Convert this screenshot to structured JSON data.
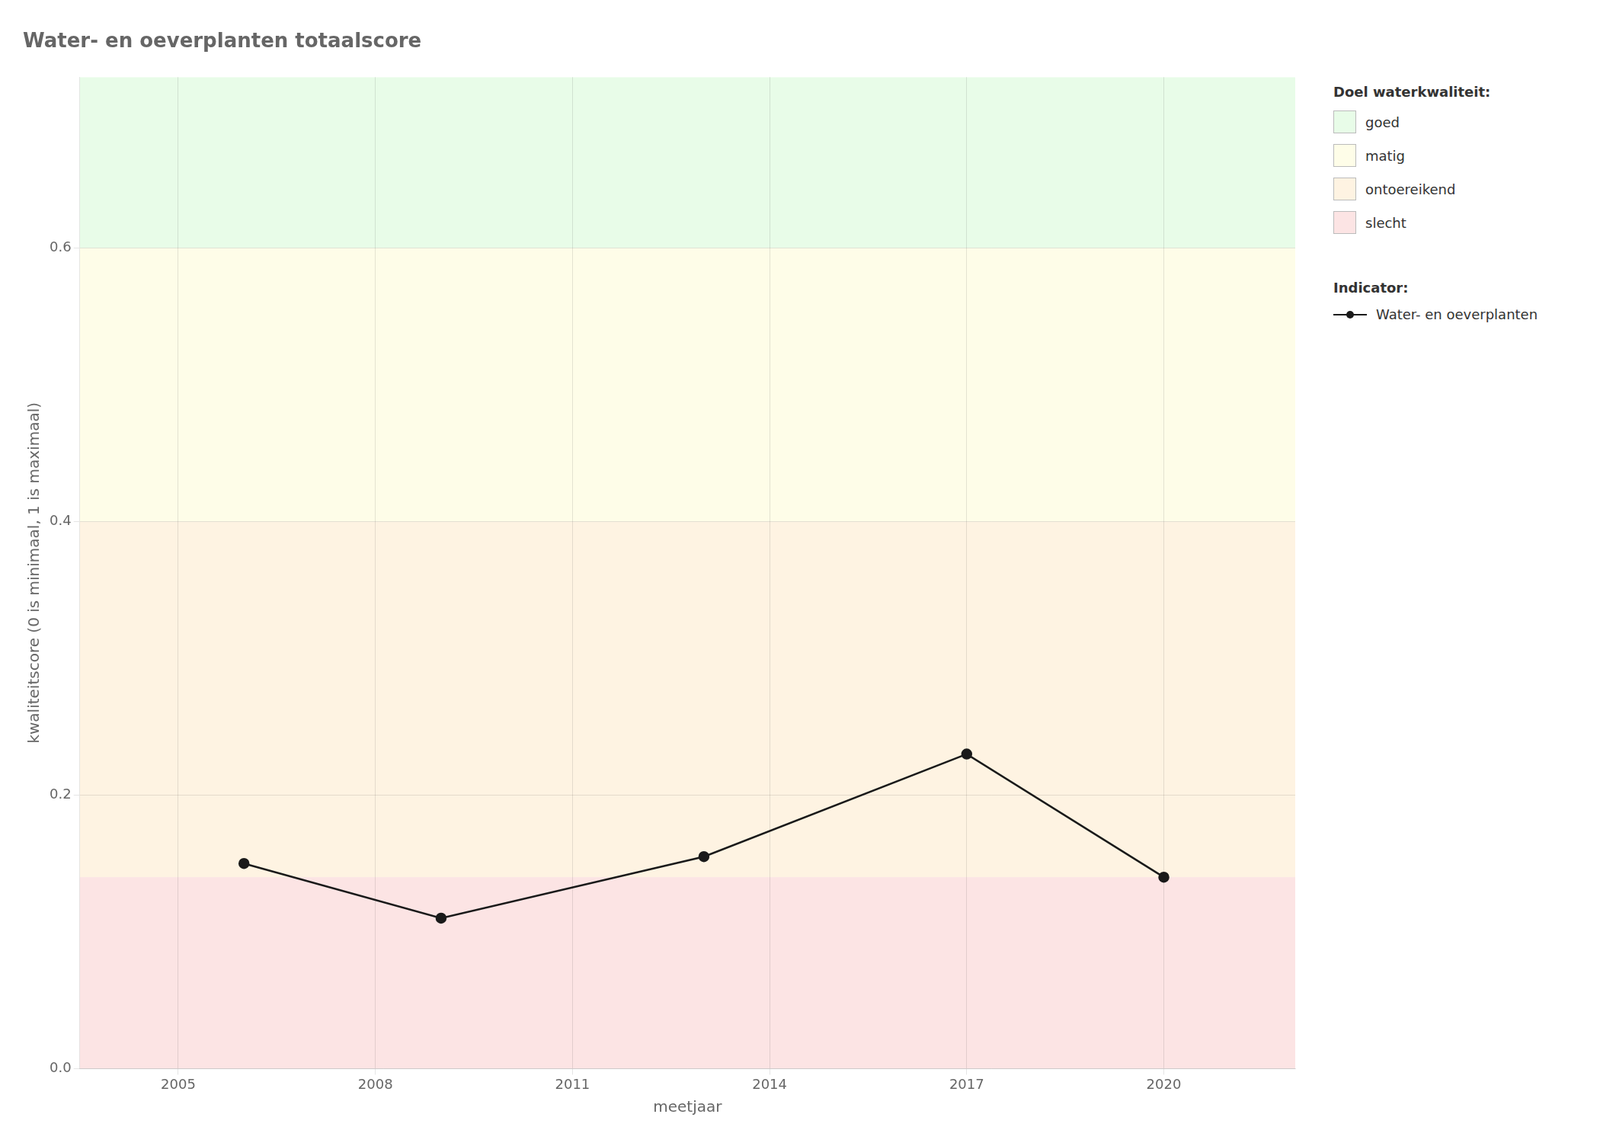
{
  "chart_data": {
    "type": "line",
    "title": "Water- en oeverplanten totaalscore",
    "x_label": "meetjaar",
    "y_label": "kwaliteitscore (0 is minimaal, 1 is maximaal)",
    "x": [
      2006,
      2009,
      2013,
      2017,
      2020
    ],
    "series": [
      {
        "name": "Water- en oeverplanten",
        "color": "#1a1a1a",
        "values": [
          0.15,
          0.11,
          0.155,
          0.23,
          0.14
        ],
        "marker": "circle",
        "line_style": "solid"
      }
    ],
    "xlim": [
      2003.5,
      2022
    ],
    "ylim": [
      0.0,
      0.725
    ],
    "xticks": [
      2005,
      2008,
      2011,
      2014,
      2017,
      2020
    ],
    "yticks": [
      {
        "value": 0.0,
        "label": "0.0"
      },
      0.2,
      0.4,
      0.6
    ],
    "grid": true,
    "legend": "right",
    "zones_title": "Doel waterkwaliteit:",
    "zones": [
      {
        "name": "goed",
        "color": "#e8fce8",
        "from": 0.6,
        "to": 0.725
      },
      {
        "name": "matig",
        "color": "#fefde8",
        "from": 0.4,
        "to": 0.6
      },
      {
        "name": "ontoereikend",
        "color": "#fef3e2",
        "from": 0.14,
        "to": 0.4
      },
      {
        "name": "slecht",
        "color": "#fce4e4",
        "from": 0.0,
        "to": 0.14
      }
    ],
    "series_title": "Indicator:"
  }
}
